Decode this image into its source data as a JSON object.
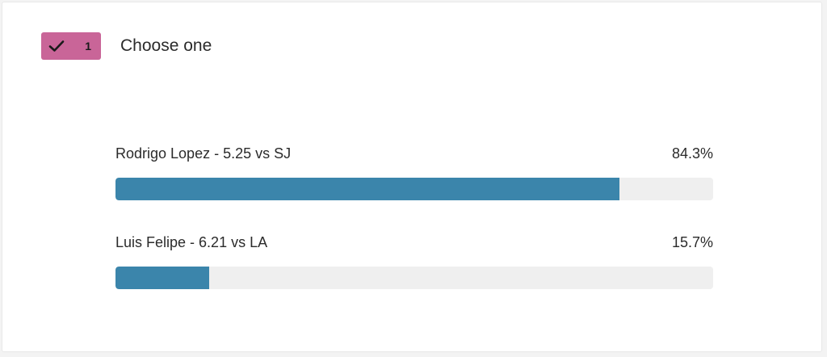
{
  "colors": {
    "badge": "#c96598",
    "bar_fill": "#3b85ab",
    "bar_track": "#efefef"
  },
  "header": {
    "badge_icon": "checkmark-icon",
    "badge_count": "1",
    "question": "Choose one"
  },
  "options": [
    {
      "label": "Rodrigo Lopez - 5.25 vs SJ",
      "percent_text": "84.3%",
      "percent": 84.3
    },
    {
      "label": "Luis Felipe - 6.21 vs LA",
      "percent_text": "15.7%",
      "percent": 15.7
    }
  ]
}
